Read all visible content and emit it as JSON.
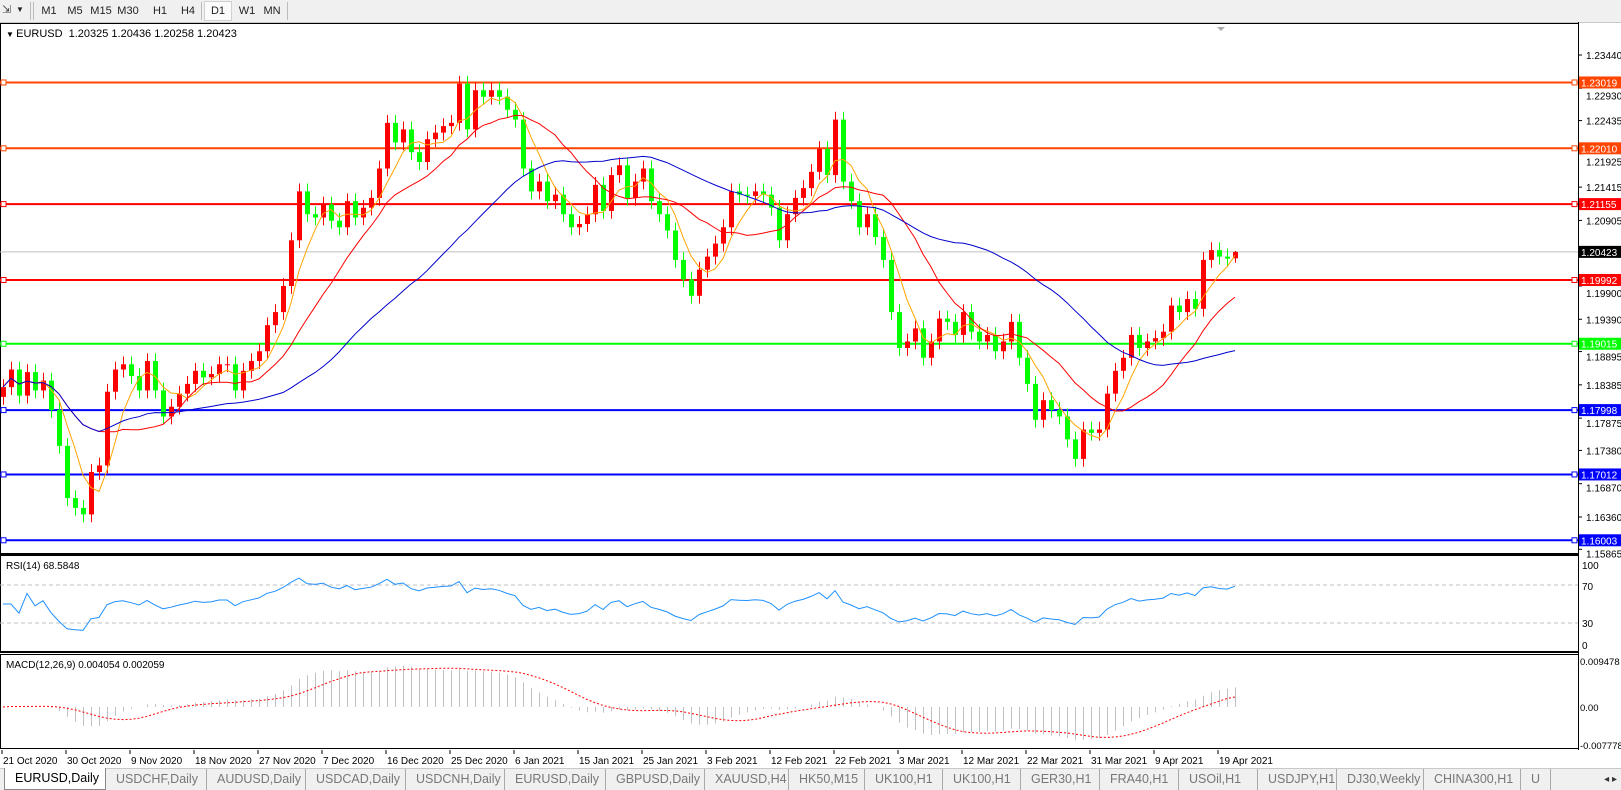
{
  "toolbar": {
    "icons": [
      "draw-tools-icon",
      "dropdown-arrow-icon"
    ],
    "timeframes": [
      "M1",
      "M5",
      "M15",
      "M30",
      "H1",
      "H4",
      "D1",
      "W1",
      "MN"
    ],
    "active_timeframe": "D1"
  },
  "chart_header": {
    "symbol": "EURUSD,Daily",
    "ohlc_text": "1.20325 1.20436 1.20258 1.20423"
  },
  "colors": {
    "bull_candle": "#ff0000",
    "bear_candle": "#00ff00",
    "ma_fast": "#ffa500",
    "ma_mid": "#ff0000",
    "ma_slow": "#0000cd",
    "rsi_line": "#1e90ff",
    "macd_hist": "#c0c0c0",
    "macd_signal": "#ff0000",
    "price_line": "#c0c0c0"
  },
  "chart_data": [
    {
      "type": "candlestick",
      "symbol": "EURUSD",
      "timeframe": "Daily",
      "last_bar": {
        "open": 1.20325,
        "high": 1.20436,
        "low": 1.20258,
        "close": 1.20423
      },
      "close": [
        1.1835,
        1.1862,
        1.1822,
        1.1858,
        1.183,
        1.1845,
        1.18,
        1.1745,
        1.1665,
        1.165,
        1.164,
        1.1705,
        1.1715,
        1.1828,
        1.1862,
        1.187,
        1.1852,
        1.183,
        1.1875,
        1.183,
        1.179,
        1.1805,
        1.1825,
        1.184,
        1.186,
        1.185,
        1.1855,
        1.187,
        1.187,
        1.183,
        1.186,
        1.1875,
        1.189,
        1.193,
        1.195,
        1.199,
        1.206,
        1.2135,
        1.21,
        1.2095,
        1.2115,
        1.209,
        1.208,
        1.212,
        1.2095,
        1.211,
        1.2125,
        1.217,
        1.224,
        1.221,
        1.223,
        1.2195,
        1.218,
        1.2215,
        1.2225,
        1.2235,
        1.224,
        1.23,
        1.223,
        1.229,
        1.228,
        1.229,
        1.228,
        1.226,
        1.2245,
        1.217,
        1.2135,
        1.215,
        1.212,
        1.213,
        1.21,
        1.208,
        1.2085,
        1.21,
        1.2145,
        1.2105,
        1.216,
        1.2175,
        1.2125,
        1.215,
        1.217,
        1.212,
        1.21,
        1.2075,
        1.203,
        1.2,
        1.1975,
        1.2015,
        1.2035,
        1.2055,
        1.208,
        1.2135,
        1.213,
        1.2128,
        1.2135,
        1.213,
        1.211,
        1.206,
        1.21,
        1.2125,
        1.214,
        1.2165,
        1.22,
        1.216,
        1.2245,
        1.215,
        1.212,
        1.208,
        1.21,
        1.2065,
        1.203,
        1.195,
        1.1895,
        1.1905,
        1.1925,
        1.188,
        1.1905,
        1.194,
        1.1935,
        1.1915,
        1.195,
        1.192,
        1.1905,
        1.1915,
        1.189,
        1.1905,
        1.1935,
        1.188,
        1.184,
        1.1785,
        1.1815,
        1.18,
        1.179,
        1.1755,
        1.1725,
        1.177,
        1.1765,
        1.177,
        1.1825,
        1.186,
        1.188,
        1.1915,
        1.1895,
        1.1905,
        1.191,
        1.192,
        1.196,
        1.195,
        1.197,
        1.1955,
        1.203,
        1.2045,
        1.2035,
        1.2032,
        1.20423
      ],
      "moving_averages": [
        "ma_fast",
        "ma_mid",
        "ma_slow"
      ],
      "ylim": [
        1.15865,
        1.2344
      ],
      "price_ticks": [
        "1.23440",
        "1.22930",
        "1.22435",
        "1.21925",
        "1.21415",
        "1.20905",
        "1.19900",
        "1.19390",
        "1.18895",
        "1.18385",
        "1.17875",
        "1.17380",
        "1.16870",
        "1.16360",
        "1.15865"
      ],
      "horizontal_levels": [
        {
          "price": "1.23019",
          "color": "#ff4500"
        },
        {
          "price": "1.22010",
          "color": "#ff4500"
        },
        {
          "price": "1.21155",
          "color": "#ff0000"
        },
        {
          "price": "1.19992",
          "color": "#ff0000"
        },
        {
          "price": "1.19015",
          "color": "#00ff00"
        },
        {
          "price": "1.17998",
          "color": "#0000ff"
        },
        {
          "price": "1.17012",
          "color": "#0000ff"
        },
        {
          "price": "1.16003",
          "color": "#0000ff"
        }
      ],
      "current_price": "1.20423",
      "x_ticks": [
        "21 Oct 2020",
        "30 Oct 2020",
        "9 Nov 2020",
        "18 Nov 2020",
        "27 Nov 2020",
        "7 Dec 2020",
        "16 Dec 2020",
        "25 Dec 2020",
        "6 Jan 2021",
        "15 Jan 2021",
        "25 Jan 2021",
        "3 Feb 2021",
        "12 Feb 2021",
        "22 Feb 2021",
        "3 Mar 2021",
        "12 Mar 2021",
        "22 Mar 2021",
        "31 Mar 2021",
        "9 Apr 2021",
        "19 Apr 2021"
      ]
    },
    {
      "type": "line",
      "indicator": "RSI",
      "label": "RSI(14) 68.5848",
      "value": 68.5848,
      "ylim": [
        0,
        100
      ],
      "levels": [
        70,
        30
      ],
      "y_ticks": [
        "100",
        "70",
        "30",
        "0"
      ]
    },
    {
      "type": "bar",
      "indicator": "MACD",
      "label": "MACD(12,26,9) 0.004054 0.002059",
      "main": 0.004054,
      "signal": 0.002059,
      "ylim": [
        -0.007778,
        0.009478
      ],
      "y_ticks": [
        "0.009478",
        "0.00",
        "-0.007778"
      ]
    }
  ],
  "tabs": [
    "EURUSD,Daily",
    "USDCHF,Daily",
    "AUDUSD,Daily",
    "USDCAD,Daily",
    "USDCNH,Daily",
    "EURUSD,Daily",
    "GBPUSD,Daily",
    "XAUUSD,H4",
    "HK50,M15",
    "UK100,H1",
    "UK100,H1",
    "GER30,H1",
    "FRA40,H1",
    "USOil,H1",
    "USDJPY,H1",
    "DJ30,Weekly",
    "CHINA300,H1",
    "U"
  ],
  "active_tab": 0,
  "tab_arrows": [
    "◂",
    "▸"
  ]
}
